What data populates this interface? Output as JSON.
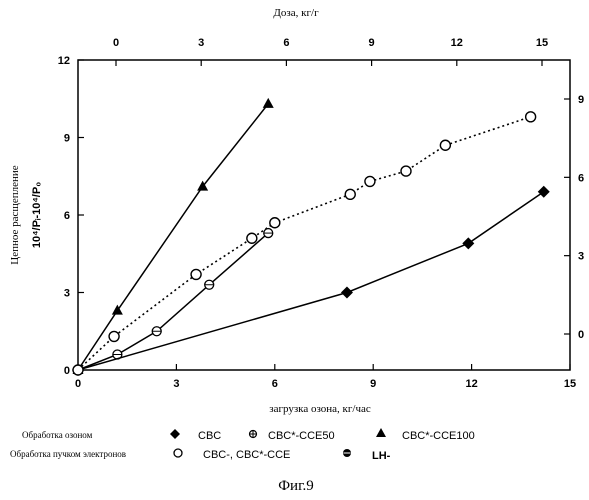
{
  "chart_data": {
    "type": "line",
    "top_axis": {
      "label": "Доза, кг/г",
      "ticks": [
        "0",
        "3",
        "6",
        "9",
        "12",
        "15"
      ]
    },
    "bottom_axis": {
      "label": "загрузка озона, кг/час",
      "ticks": [
        "0",
        "3",
        "6",
        "9",
        "12",
        "15"
      ],
      "xlim": [
        0,
        15
      ]
    },
    "left_axis": {
      "label_main": "Цепное расщепление",
      "label_formula": "10⁴/Pᵢ-10⁴/P₀",
      "ticks": [
        "0",
        "3",
        "6",
        "9",
        "12"
      ],
      "ylim": [
        0,
        12
      ]
    },
    "right_axis": {
      "ticks": [
        "0",
        "3",
        "6",
        "9"
      ]
    },
    "grid": false,
    "series": [
      {
        "name": "CBC*-CCE100",
        "marker": "triangle",
        "line": "solid",
        "x": [
          0,
          1.2,
          3.8,
          5.8
        ],
        "y": [
          0,
          2.3,
          7.1,
          10.3
        ]
      },
      {
        "name": "CBC*-CCE50",
        "marker": "circle-cross",
        "line": "solid",
        "x": [
          0,
          1.2,
          2.4,
          4.0,
          5.8
        ],
        "y": [
          0,
          0.6,
          1.5,
          3.3,
          5.3
        ]
      },
      {
        "name": "CBC",
        "marker": "diamond",
        "line": "solid",
        "x": [
          0,
          8.2,
          11.9,
          14.2
        ],
        "y": [
          0,
          3.0,
          4.9,
          6.9
        ]
      },
      {
        "name": "CBC-, CBC*-CCE",
        "marker": "open-circle",
        "line": "dotted",
        "x": [
          0,
          1.1,
          3.6,
          5.3,
          6.0,
          8.3,
          8.9,
          10.0,
          11.2,
          13.8
        ],
        "y": [
          0,
          1.3,
          3.7,
          5.1,
          5.7,
          6.8,
          7.3,
          7.7,
          8.7,
          9.8
        ]
      }
    ],
    "legend": {
      "placement": "bottom",
      "ozone_label": "Обработка озоном",
      "ozone_items": [
        "CBC",
        "CBC*-CCE50",
        "CBC*-CCE100"
      ],
      "ebeam_label": "Обработка пучком электронов",
      "ebeam_items": [
        "CBC-, CBC*-CCE",
        "LH-"
      ]
    }
  },
  "caption": "Фиг.9"
}
